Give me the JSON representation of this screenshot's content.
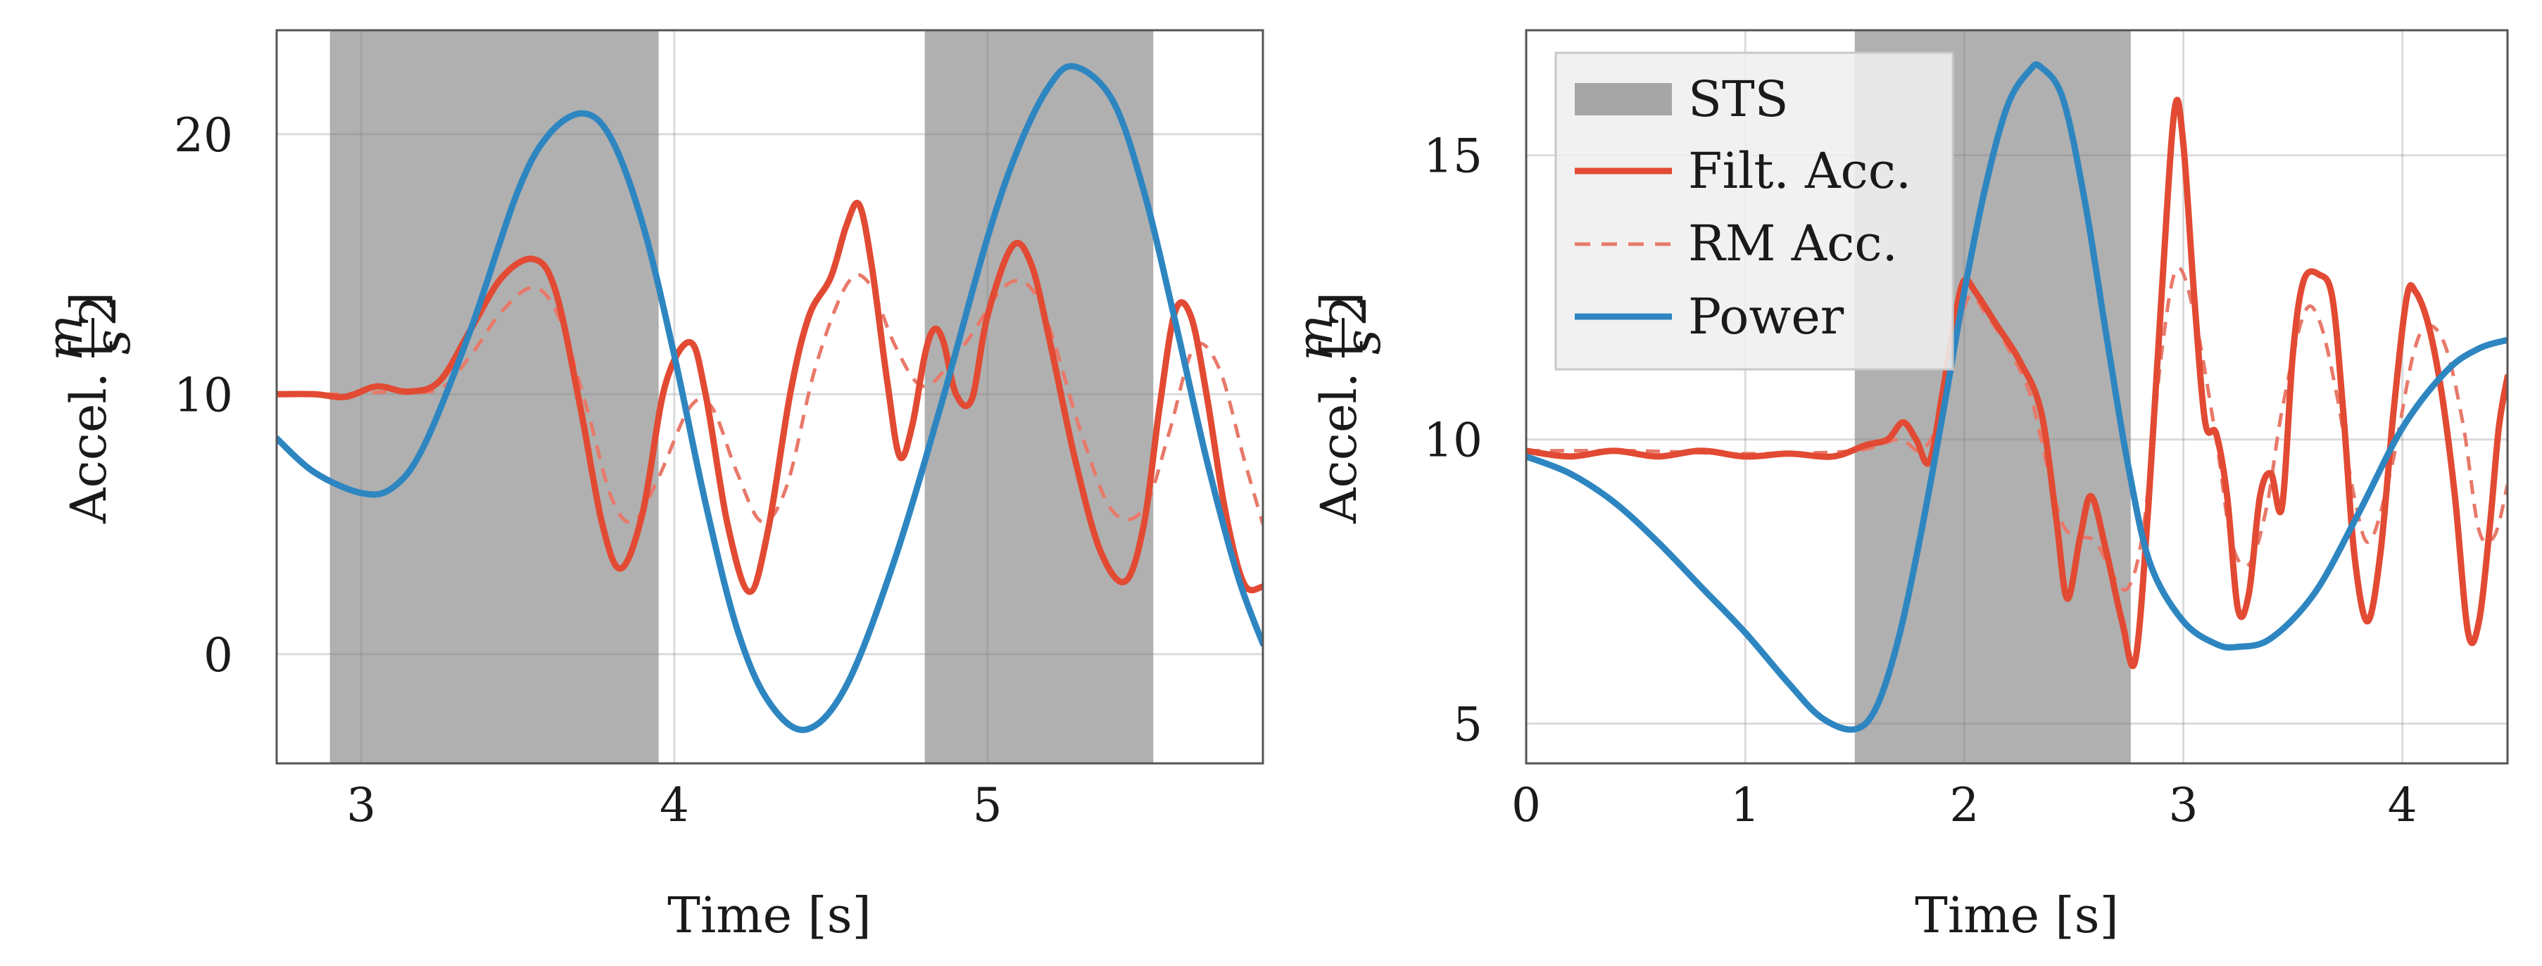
{
  "chart_data": [
    {
      "type": "line",
      "name": "left-chart",
      "xlabel": "Time [s]",
      "ylabel": "Accel. [m/s²]",
      "ylabel_prefix": "Accel. [",
      "ylabel_num": "m",
      "ylabel_den": "s",
      "ylabel_den_exp": "2",
      "ylabel_suffix": "]",
      "xlim": [
        2.73,
        5.88
      ],
      "ylim": [
        -4.2,
        24
      ],
      "xticks": [
        3,
        4,
        5
      ],
      "xtick_labels": [
        "3",
        "4",
        "5"
      ],
      "yticks": [
        0,
        10,
        20
      ],
      "ytick_labels": [
        "0",
        "10",
        "20"
      ],
      "grid": true,
      "shaded_regions": [
        [
          2.9,
          3.95
        ],
        [
          4.8,
          5.53
        ]
      ],
      "series": [
        {
          "name": "Power",
          "color": "#2e86c1",
          "style": "solid",
          "x": [
            2.73,
            2.85,
            3.0,
            3.1,
            3.2,
            3.35,
            3.5,
            3.6,
            3.71,
            3.8,
            3.9,
            4.0,
            4.1,
            4.2,
            4.3,
            4.42,
            4.55,
            4.7,
            4.85,
            5.0,
            5.1,
            5.2,
            5.28,
            5.4,
            5.5,
            5.6,
            5.7,
            5.8,
            5.88
          ],
          "values": [
            8.3,
            7.0,
            6.2,
            6.4,
            8.0,
            12.5,
            17.8,
            20.0,
            20.8,
            19.8,
            16.5,
            11.5,
            5.8,
            1.0,
            -1.8,
            -2.9,
            -1.2,
            3.5,
            9.5,
            16.0,
            19.5,
            21.9,
            22.6,
            21.3,
            17.8,
            12.8,
            7.5,
            3.0,
            0.4
          ]
        },
        {
          "name": "Filt. Acc.",
          "color": "#e24a33",
          "style": "solid",
          "x": [
            2.73,
            2.85,
            2.95,
            3.05,
            3.15,
            3.25,
            3.35,
            3.45,
            3.55,
            3.62,
            3.7,
            3.77,
            3.83,
            3.9,
            3.97,
            4.05,
            4.1,
            4.17,
            4.24,
            4.3,
            4.37,
            4.43,
            4.5,
            4.55,
            4.59,
            4.63,
            4.68,
            4.72,
            4.76,
            4.8,
            4.83,
            4.86,
            4.9,
            4.95,
            5.0,
            5.08,
            5.14,
            5.2,
            5.28,
            5.36,
            5.44,
            5.5,
            5.55,
            5.6,
            5.65,
            5.7,
            5.76,
            5.82,
            5.88
          ],
          "values": [
            10.0,
            10.0,
            9.9,
            10.3,
            10.1,
            10.5,
            12.5,
            14.5,
            15.2,
            14.0,
            9.5,
            5.0,
            3.3,
            5.5,
            10.3,
            12.0,
            10.0,
            5.0,
            2.4,
            4.8,
            10.0,
            13.0,
            14.5,
            16.5,
            17.3,
            15.0,
            10.5,
            7.6,
            8.8,
            11.5,
            12.5,
            12.0,
            10.0,
            9.8,
            13.0,
            15.7,
            15.0,
            12.0,
            7.5,
            4.0,
            2.8,
            5.0,
            9.5,
            13.2,
            13.0,
            10.0,
            5.5,
            2.7,
            2.6
          ]
        },
        {
          "name": "RM Acc.",
          "color": "#e8796a",
          "style": "dashed",
          "x": [
            2.73,
            2.9,
            3.1,
            3.25,
            3.35,
            3.45,
            3.55,
            3.63,
            3.72,
            3.8,
            3.87,
            3.95,
            4.05,
            4.12,
            4.2,
            4.28,
            4.36,
            4.45,
            4.55,
            4.62,
            4.7,
            4.77,
            4.82,
            4.88,
            4.95,
            5.05,
            5.13,
            5.2,
            5.3,
            5.4,
            5.5,
            5.58,
            5.66,
            5.74,
            5.82,
            5.88
          ],
          "values": [
            10.0,
            10.0,
            10.1,
            10.2,
            11.5,
            13.2,
            14.1,
            13.0,
            9.5,
            6.0,
            5.1,
            6.8,
            9.5,
            9.5,
            7.0,
            5.1,
            6.5,
            11.0,
            14.2,
            14.3,
            12.0,
            10.5,
            10.4,
            11.2,
            12.3,
            14.1,
            14.2,
            12.5,
            8.5,
            5.5,
            5.6,
            8.5,
            11.8,
            11.0,
            7.5,
            5.0
          ]
        }
      ]
    },
    {
      "type": "line",
      "name": "right-chart",
      "xlabel": "Time [s]",
      "ylabel": "Accel. [m/s²]",
      "ylabel_prefix": "Accel. [",
      "ylabel_num": "m",
      "ylabel_den": "s",
      "ylabel_den_exp": "2",
      "ylabel_suffix": "]",
      "xlim": [
        0,
        4.48
      ],
      "ylim": [
        4.3,
        17.2
      ],
      "xticks": [
        0,
        1,
        2,
        3,
        4
      ],
      "xtick_labels": [
        "0",
        "1",
        "2",
        "3",
        "4"
      ],
      "yticks": [
        5,
        10,
        15
      ],
      "ytick_labels": [
        "5",
        "10",
        "15"
      ],
      "grid": true,
      "legend_position": "top-left",
      "legend": [
        "STS",
        "Filt. Acc.",
        "RM Acc.",
        "Power"
      ],
      "shaded_regions": [
        [
          1.5,
          2.76
        ]
      ],
      "series": [
        {
          "name": "Power",
          "color": "#2e86c1",
          "style": "solid",
          "x": [
            0.0,
            0.2,
            0.4,
            0.6,
            0.8,
            1.0,
            1.2,
            1.35,
            1.5,
            1.6,
            1.7,
            1.8,
            1.9,
            2.0,
            2.1,
            2.2,
            2.3,
            2.35,
            2.45,
            2.55,
            2.65,
            2.75,
            2.85,
            3.0,
            3.15,
            3.25,
            3.4,
            3.6,
            3.8,
            4.0,
            4.2,
            4.35,
            4.48
          ],
          "values": [
            9.7,
            9.4,
            8.9,
            8.2,
            7.4,
            6.6,
            5.7,
            5.1,
            4.9,
            5.3,
            6.5,
            8.3,
            10.4,
            12.6,
            14.5,
            15.9,
            16.5,
            16.55,
            16.0,
            14.2,
            11.8,
            9.5,
            7.8,
            6.8,
            6.4,
            6.35,
            6.5,
            7.3,
            8.7,
            10.2,
            11.2,
            11.6,
            11.75
          ]
        },
        {
          "name": "Filt. Acc.",
          "color": "#e24a33",
          "style": "solid",
          "x": [
            0.0,
            0.2,
            0.4,
            0.6,
            0.8,
            1.0,
            1.2,
            1.4,
            1.55,
            1.65,
            1.72,
            1.78,
            1.84,
            1.9,
            1.96,
            2.0,
            2.05,
            2.15,
            2.25,
            2.35,
            2.42,
            2.47,
            2.53,
            2.58,
            2.65,
            2.72,
            2.78,
            2.84,
            2.9,
            2.96,
            3.0,
            3.05,
            3.1,
            3.15,
            3.2,
            3.25,
            3.3,
            3.35,
            3.4,
            3.45,
            3.5,
            3.55,
            3.62,
            3.68,
            3.73,
            3.78,
            3.84,
            3.9,
            3.96,
            4.02,
            4.06,
            4.12,
            4.18,
            4.24,
            4.3,
            4.35,
            4.4,
            4.44,
            4.48
          ],
          "values": [
            9.8,
            9.7,
            9.8,
            9.7,
            9.8,
            9.7,
            9.75,
            9.7,
            9.9,
            10.0,
            10.3,
            10.0,
            9.6,
            10.8,
            12.2,
            12.8,
            12.6,
            12.0,
            11.4,
            10.5,
            8.6,
            7.2,
            8.3,
            9.0,
            8.0,
            6.8,
            6.1,
            8.8,
            12.5,
            15.8,
            15.2,
            12.5,
            10.3,
            10.1,
            9.0,
            7.0,
            7.3,
            9.0,
            9.4,
            8.8,
            11.5,
            12.8,
            12.9,
            12.5,
            10.5,
            8.0,
            6.8,
            8.0,
            10.5,
            12.5,
            12.6,
            12.0,
            10.8,
            9.0,
            6.6,
            6.8,
            8.5,
            10.2,
            11.1
          ]
        },
        {
          "name": "RM Acc.",
          "color": "#e8796a",
          "style": "dashed",
          "x": [
            0.0,
            0.5,
            1.0,
            1.5,
            1.7,
            1.8,
            1.88,
            1.95,
            2.02,
            2.1,
            2.2,
            2.3,
            2.38,
            2.45,
            2.52,
            2.6,
            2.68,
            2.75,
            2.82,
            2.9,
            2.97,
            3.05,
            3.15,
            3.22,
            3.3,
            3.38,
            3.45,
            3.55,
            3.62,
            3.7,
            3.78,
            3.85,
            3.95,
            4.05,
            4.12,
            4.2,
            4.28,
            4.35,
            4.42,
            4.48
          ],
          "values": [
            9.8,
            9.8,
            9.75,
            9.8,
            10.0,
            9.8,
            10.3,
            11.5,
            12.5,
            12.2,
            11.6,
            10.8,
            9.5,
            8.5,
            8.3,
            8.2,
            7.6,
            7.4,
            8.5,
            11.5,
            13.0,
            12.2,
            10.0,
            8.2,
            7.8,
            8.8,
            10.5,
            12.2,
            12.1,
            10.8,
            9.0,
            8.2,
            9.5,
            11.5,
            12.0,
            11.6,
            10.2,
            8.4,
            8.3,
            9.2
          ]
        }
      ]
    }
  ]
}
